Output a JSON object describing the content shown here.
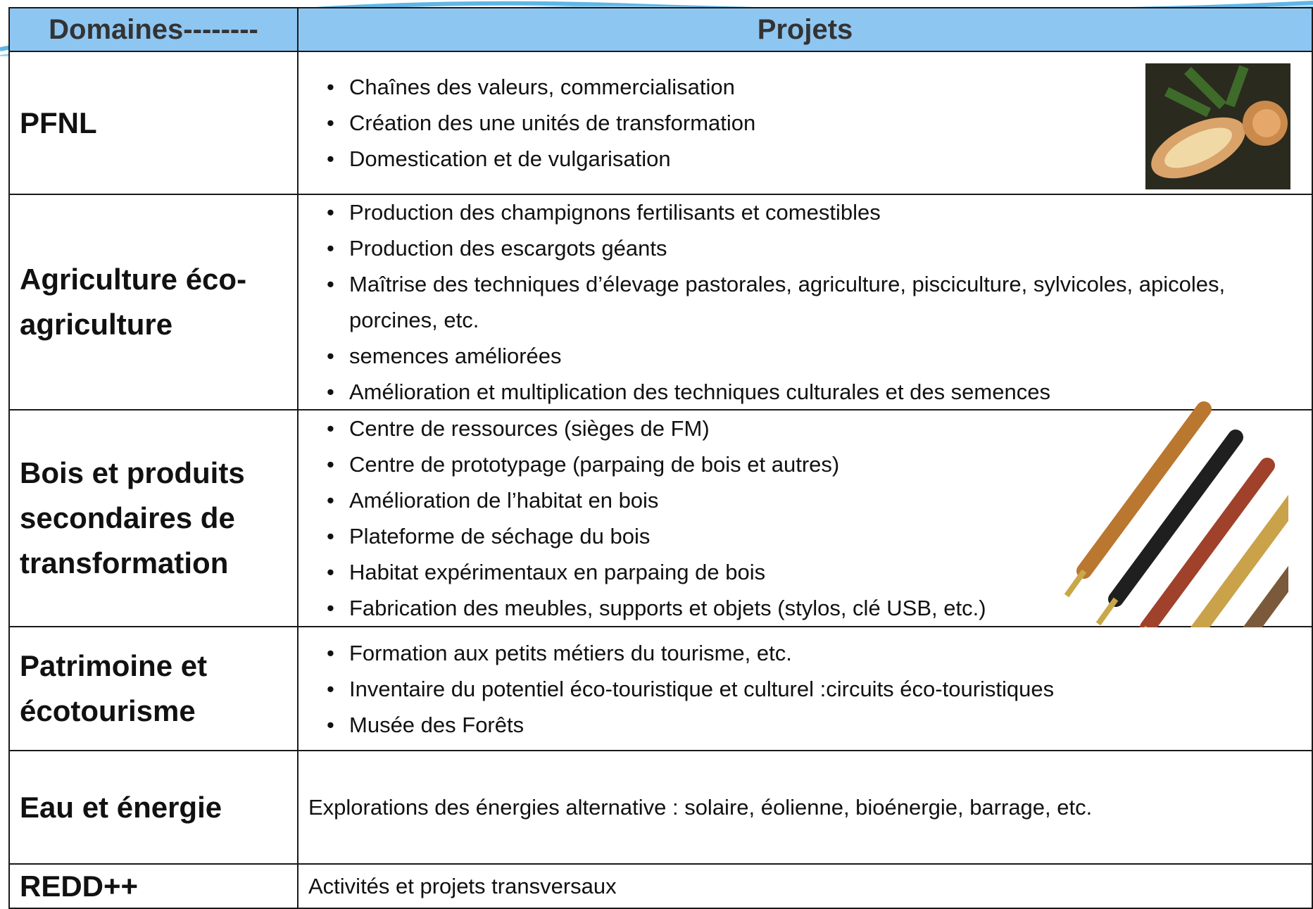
{
  "header": {
    "columns": [
      "Domaines--------",
      "Projets"
    ]
  },
  "table": {
    "rows": [
      {
        "domain": "PFNL",
        "items": [
          "Chaînes des valeurs, commercialisation",
          "Création des une unités de transformation",
          "Domestication et de vulgarisation"
        ]
      },
      {
        "domain": "Agriculture éco-agriculture",
        "items": [
          "Production des champignons fertilisants et comestibles",
          "Production des escargots géants",
          "Maîtrise des techniques d’élevage pastorales, agriculture, pisciculture, sylvicoles, apicoles, porcines, etc.",
          "semences améliorées",
          "Amélioration et multiplication des techniques culturales et des semences"
        ]
      },
      {
        "domain": "Bois et produits secondaires de transformation",
        "items": [
          "Centre de ressources (sièges de FM)",
          "Centre de prototypage (parpaing  de bois et autres)",
          "Amélioration de l’habitat en bois",
          "Plateforme de séchage du bois",
          "Habitat expérimentaux  en parpaing de bois",
          "Fabrication des meubles, supports  et objets (stylos, clé USB, etc.)"
        ]
      },
      {
        "domain": "Patrimoine et écotourisme",
        "items": [
          "Formation aux petits métiers du tourisme, etc.",
          "Inventaire du potentiel éco-touristique et culturel :circuits éco-touristiques",
          "Musée des Forêts"
        ]
      },
      {
        "domain": "Eau et énergie",
        "text": "Explorations des énergies alternative : solaire, éolienne, bioénergie, barrage, etc."
      },
      {
        "domain": "REDD++",
        "text": "Activités et projets transversaux"
      }
    ]
  }
}
